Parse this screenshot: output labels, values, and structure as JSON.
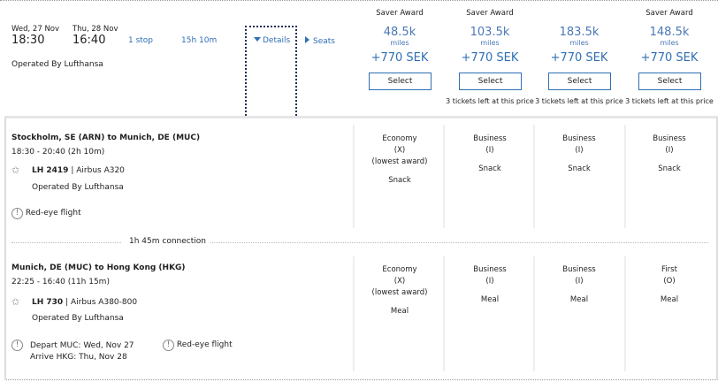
{
  "summary": {
    "depart_date": "Wed, 27 Nov",
    "depart_time": "18:30",
    "arrive_date": "Thu, 28 Nov",
    "arrive_time": "16:40",
    "stops": "1 stop",
    "duration": "15h 10m",
    "operated_by": "Operated By Lufthansa",
    "details_label": "Details",
    "seats_label": "Seats"
  },
  "fares": [
    {
      "award": "Saver Award",
      "miles": "48.5k",
      "miles_label": "miles",
      "tax": "+770 SEK",
      "select": "Select",
      "left": ""
    },
    {
      "award": "Saver Award",
      "miles": "103.5k",
      "miles_label": "miles",
      "tax": "+770 SEK",
      "select": "Select",
      "left": "3 tickets left at this price"
    },
    {
      "award": "",
      "miles": "183.5k",
      "miles_label": "miles",
      "tax": "+770 SEK",
      "select": "Select",
      "left": "3 tickets left at this price"
    },
    {
      "award": "Saver Award",
      "miles": "148.5k",
      "miles_label": "miles",
      "tax": "+770 SEK",
      "select": "Select",
      "left": "3 tickets left at this price"
    }
  ],
  "segments": [
    {
      "route": "Stockholm, SE (ARN) to Munich, DE (MUC)",
      "times": "18:30 - 20:40 (2h 10m)",
      "flight": "LH 2419",
      "aircraft": "Airbus A320",
      "operated_by": "Operated By Lufthansa",
      "notes": [
        "Red-eye flight"
      ],
      "cabins": [
        {
          "cabin": "Economy",
          "code": "(X)",
          "extra": "(lowest award)",
          "meal": "Snack"
        },
        {
          "cabin": "Business",
          "code": "(I)",
          "extra": "",
          "meal": "Snack"
        },
        {
          "cabin": "Business",
          "code": "(I)",
          "extra": "",
          "meal": "Snack"
        },
        {
          "cabin": "Business",
          "code": "(I)",
          "extra": "",
          "meal": "Snack"
        }
      ]
    },
    {
      "route": "Munich, DE (MUC) to Hong Kong (HKG)",
      "times": "22:25 - 16:40 (11h 15m)",
      "flight": "LH 730",
      "aircraft": "Airbus A380-800",
      "operated_by": "Operated By Lufthansa",
      "notes": [
        "Depart MUC: Wed, Nov 27",
        "Arrive HKG: Thu, Nov 28",
        "Red-eye flight"
      ],
      "cabins": [
        {
          "cabin": "Economy",
          "code": "(X)",
          "extra": "(lowest award)",
          "meal": "Meal"
        },
        {
          "cabin": "Business",
          "code": "(I)",
          "extra": "",
          "meal": "Meal"
        },
        {
          "cabin": "Business",
          "code": "(I)",
          "extra": "",
          "meal": "Meal"
        },
        {
          "cabin": "First",
          "code": "(O)",
          "extra": "",
          "meal": "Meal"
        }
      ]
    }
  ],
  "connection": "1h 45m connection",
  "sep": "|",
  "colors": {
    "accent": "#2f6fb5",
    "focus": "#1b2f55"
  }
}
